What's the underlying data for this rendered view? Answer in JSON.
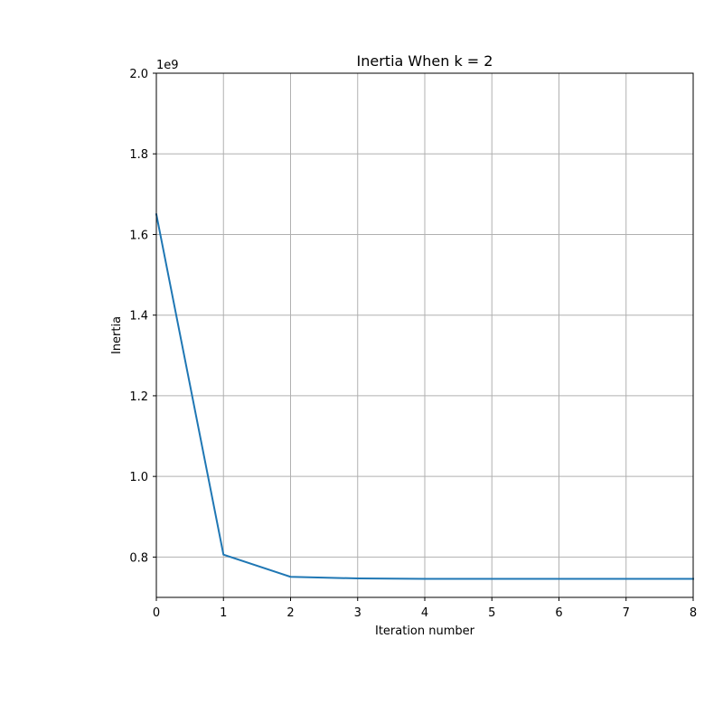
{
  "chart_data": {
    "type": "line",
    "title": "Inertia When k = 2",
    "xlabel": "Iteration number",
    "ylabel": "Inertia",
    "y_offset_label": "1e9",
    "xlim": [
      0,
      8
    ],
    "ylim": [
      0.7,
      2.0
    ],
    "x_ticks": [
      0,
      1,
      2,
      3,
      4,
      5,
      6,
      7,
      8
    ],
    "x_tick_labels": [
      "0",
      "1",
      "2",
      "3",
      "4",
      "5",
      "6",
      "7",
      "8"
    ],
    "y_ticks": [
      0.8,
      1.0,
      1.2,
      1.4,
      1.6,
      1.8,
      2.0
    ],
    "y_tick_labels": [
      "0.8",
      "1.0",
      "1.2",
      "1.4",
      "1.6",
      "1.8",
      "2.0"
    ],
    "grid": true,
    "series": [
      {
        "color": "#1f77b4",
        "x": [
          0,
          1,
          2,
          3,
          4,
          5,
          6,
          7,
          8
        ],
        "y": [
          1.65,
          0.806,
          0.751,
          0.747,
          0.746,
          0.746,
          0.746,
          0.746,
          0.746
        ]
      }
    ]
  }
}
